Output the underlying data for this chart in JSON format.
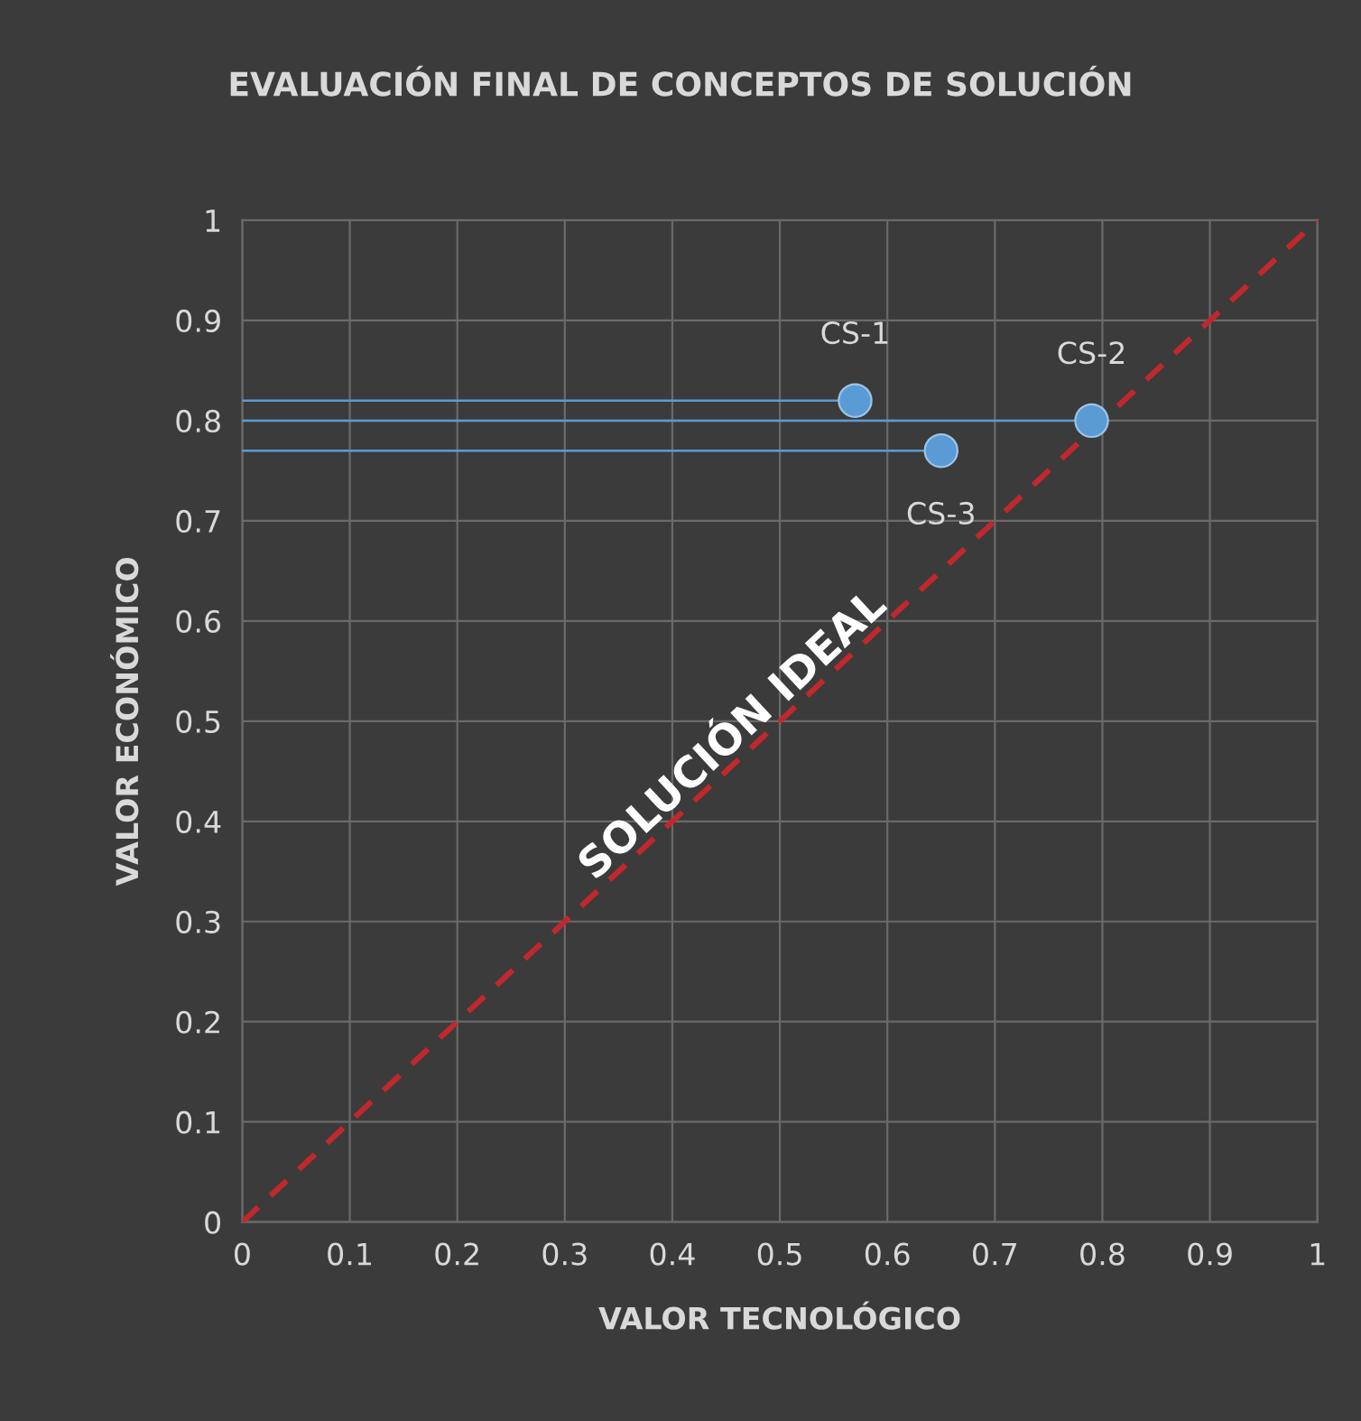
{
  "chart_data": {
    "type": "scatter",
    "title": "EVALUACIÓN FINAL DE CONCEPTOS DE SOLUCIÓN",
    "xlabel": "VALOR TECNOLÓGICO",
    "ylabel": "VALOR ECONÓMICO",
    "xlim": [
      0,
      1
    ],
    "ylim": [
      0,
      1
    ],
    "xticks": [
      0,
      0.1,
      0.2,
      0.3,
      0.4,
      0.5,
      0.6,
      0.7,
      0.8,
      0.9,
      1
    ],
    "yticks": [
      0,
      0.1,
      0.2,
      0.3,
      0.4,
      0.5,
      0.6,
      0.7,
      0.8,
      0.9,
      1
    ],
    "grid": true,
    "marker": "circle",
    "series": [
      {
        "color": "#5b9bd5",
        "x": [
          0.57,
          0.79,
          0.65
        ],
        "values": [
          0.82,
          0.8,
          0.77
        ],
        "xerrors": [
          [
            0,
            0.57
          ],
          [
            0,
            0.79
          ],
          [
            0,
            0.65
          ]
        ]
      },
      {
        "type": "line",
        "color": "#c0282d",
        "line_style": "dashed",
        "marker": "none",
        "x": [
          0,
          1
        ],
        "values": [
          0,
          1
        ]
      }
    ],
    "annotations": [
      {
        "text": "CS-1",
        "x": 0.57,
        "y": 0.82
      },
      {
        "text": "CS-2",
        "x": 0.79,
        "y": 0.8
      },
      {
        "text": "CS-3",
        "x": 0.65,
        "y": 0.77
      },
      {
        "text": "SOLUCIÓN IDEAL",
        "x": 0.47,
        "y": 0.47
      }
    ]
  }
}
